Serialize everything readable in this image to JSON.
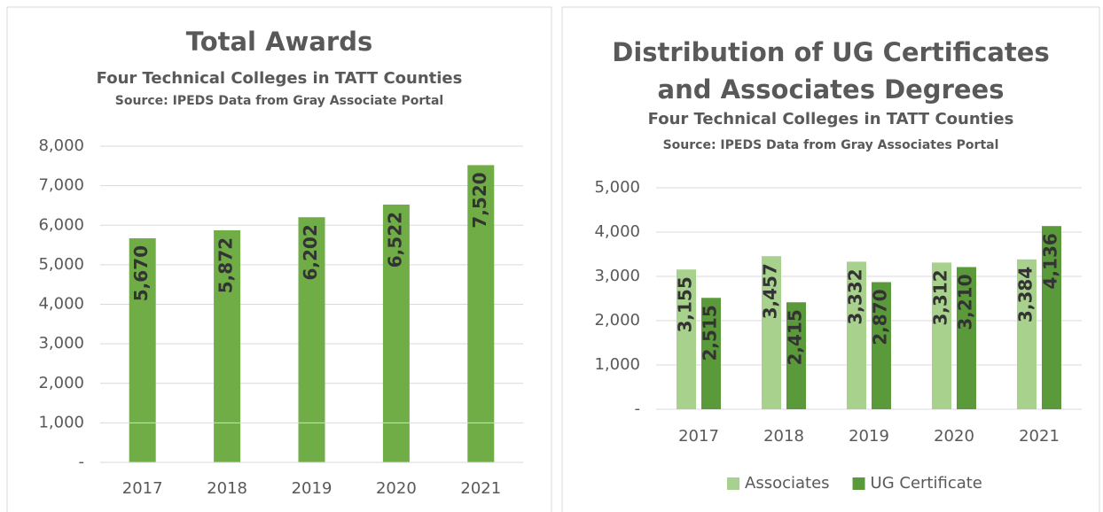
{
  "chart_data": [
    {
      "type": "bar",
      "title": "Total Awards",
      "subtitle": "Four Technical Colleges in TATT Counties",
      "source": "Source:  IPEDS Data from Gray Associate Portal",
      "categories": [
        "2017",
        "2018",
        "2019",
        "2020",
        "2021"
      ],
      "values": [
        5670,
        5872,
        6202,
        6522,
        7520
      ],
      "value_labels": [
        "5,670",
        "5,872",
        "6,202",
        "6,522",
        "7,520"
      ],
      "color": "#70ad47",
      "ylim": [
        0,
        8000
      ],
      "yticks": [
        {
          "value": 0,
          "label": "-"
        },
        {
          "value": 1000,
          "label": "1,000"
        },
        {
          "value": 2000,
          "label": "2,000"
        },
        {
          "value": 3000,
          "label": "3,000"
        },
        {
          "value": 4000,
          "label": "4,000"
        },
        {
          "value": 5000,
          "label": "5,000"
        },
        {
          "value": 6000,
          "label": "6,000"
        },
        {
          "value": 7000,
          "label": "7,000"
        },
        {
          "value": 8000,
          "label": "8,000"
        }
      ],
      "grid": true
    },
    {
      "type": "bar",
      "title": "Distribution of UG Certificates and Associates Degrees",
      "subtitle": "Four Technical Colleges in TATT Counties",
      "source": "Source:  IPEDS Data from Gray Associates Portal",
      "categories": [
        "2017",
        "2018",
        "2019",
        "2020",
        "2021"
      ],
      "series": [
        {
          "name": "Associates",
          "color": "#a9d18e",
          "values": [
            3155,
            3457,
            3332,
            3312,
            3384
          ],
          "value_labels": [
            "3,155",
            "3,457",
            "3,332",
            "3,312",
            "3,384"
          ]
        },
        {
          "name": "UG Certificate",
          "color": "#5b9a3a",
          "values": [
            2515,
            2415,
            2870,
            3210,
            4136
          ],
          "value_labels": [
            "2,515",
            "2,415",
            "2,870",
            "3,210",
            "4,136"
          ]
        }
      ],
      "ylim": [
        0,
        5000
      ],
      "yticks": [
        {
          "value": 0,
          "label": "-"
        },
        {
          "value": 1000,
          "label": "1,000"
        },
        {
          "value": 2000,
          "label": "2,000"
        },
        {
          "value": 3000,
          "label": "3,000"
        },
        {
          "value": 4000,
          "label": "4,000"
        },
        {
          "value": 5000,
          "label": "5,000"
        }
      ],
      "grid": true,
      "legend": "bottom"
    }
  ]
}
